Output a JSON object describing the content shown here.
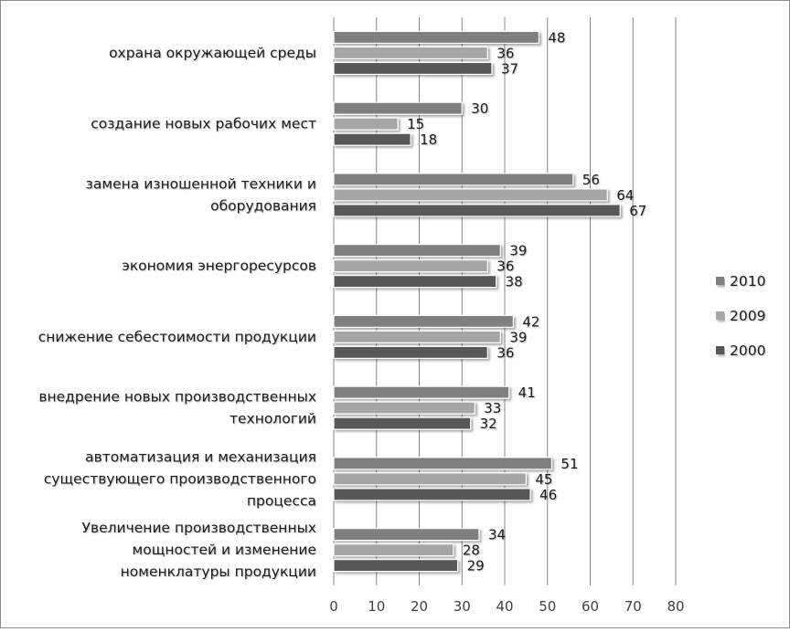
{
  "chart_data": {
    "type": "bar",
    "orientation": "horizontal",
    "categories": [
      "охрана окружающей среды",
      "создание новых рабочих мест",
      "замена изношенной техники и оборудования",
      "экономия энергоресурсов",
      "снижение себестоимости продукции",
      "внедрение новых производственных технологий",
      "автоматизация и механизация существующего производственного процесса",
      "Увеличение производственных мощностей и изменение номенклатуры продукции"
    ],
    "category_lines": [
      [
        "охрана окружающей среды"
      ],
      [
        "создание новых рабочих мест"
      ],
      [
        "замена изношенной техники и",
        "оборудования"
      ],
      [
        "экономия энергоресурсов"
      ],
      [
        "снижение себестоимости продукции"
      ],
      [
        "внедрение новых производственных",
        "технологий"
      ],
      [
        "автоматизация и механизация",
        "существующего производственного",
        "процесса"
      ],
      [
        "Увеличение производственных",
        "мощностей и изменение",
        "номенклатуры продукции"
      ]
    ],
    "series": [
      {
        "name": "2010",
        "values": [
          48,
          30,
          56,
          39,
          42,
          41,
          51,
          34
        ],
        "color": "#7f7f7f"
      },
      {
        "name": "2009",
        "values": [
          36,
          15,
          64,
          36,
          39,
          33,
          45,
          28
        ],
        "color": "#a6a6a6"
      },
      {
        "name": "2000",
        "values": [
          37,
          18,
          67,
          38,
          36,
          32,
          46,
          29
        ],
        "color": "#595959"
      }
    ],
    "x_ticks": [
      0,
      10,
      20,
      30,
      40,
      50,
      60,
      70,
      80
    ],
    "xlim": [
      0,
      80
    ],
    "grid": true,
    "legend_position": "right"
  }
}
